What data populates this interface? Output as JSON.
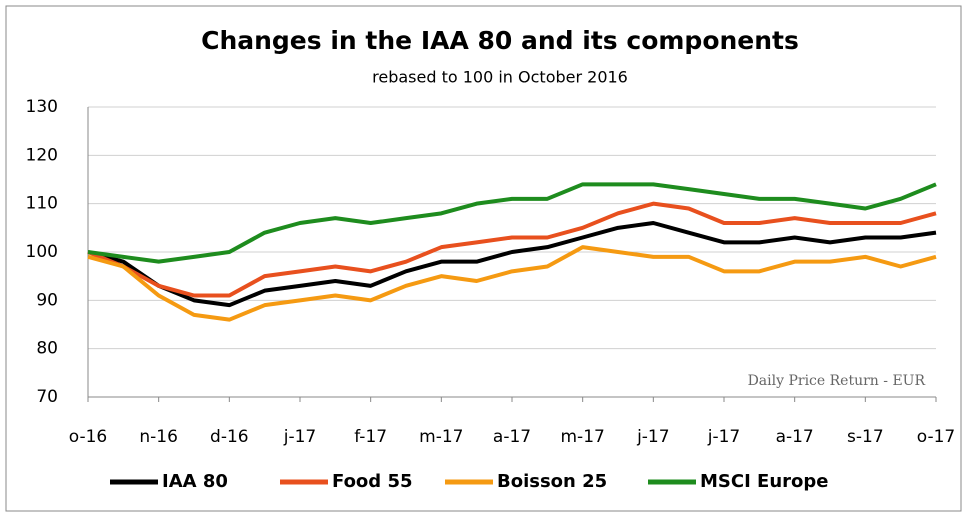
{
  "chart_data": {
    "type": "line",
    "title": "Changes in the IAA 80 and its components",
    "subtitle": "rebased to 100 in October 2016",
    "annotation": "Daily Price Return - EUR",
    "x": [
      0,
      0.5,
      1,
      1.5,
      2,
      2.5,
      3,
      3.5,
      4,
      4.5,
      5,
      5.5,
      6,
      6.5,
      7,
      7.5,
      8,
      8.5,
      9,
      9.5,
      10,
      10.5,
      11,
      11.5,
      12
    ],
    "xlim": [
      0,
      12
    ],
    "xticks": [
      {
        "value": 0,
        "label": "o-16"
      },
      {
        "value": 1,
        "label": "n-16"
      },
      {
        "value": 2,
        "label": "d-16"
      },
      {
        "value": 3,
        "label": "j-17"
      },
      {
        "value": 4,
        "label": "f-17"
      },
      {
        "value": 5,
        "label": "m-17"
      },
      {
        "value": 6,
        "label": "a-17"
      },
      {
        "value": 7,
        "label": "m-17"
      },
      {
        "value": 8,
        "label": "j-17"
      },
      {
        "value": 9,
        "label": "j-17"
      },
      {
        "value": 10,
        "label": "a-17"
      },
      {
        "value": 11,
        "label": "s-17"
      },
      {
        "value": 12,
        "label": "o-17"
      }
    ],
    "ylim": [
      70,
      130
    ],
    "yticks": [
      70,
      80,
      90,
      100,
      110,
      120,
      130
    ],
    "grid": true,
    "legend": "bottom",
    "series": [
      {
        "name": "IAA 80",
        "color": "#000000",
        "values": [
          100,
          98,
          93,
          90,
          89,
          92,
          93,
          94,
          93,
          96,
          98,
          98,
          100,
          101,
          103,
          105,
          106,
          104,
          102,
          102,
          103,
          102,
          103,
          103,
          104
        ]
      },
      {
        "name": "Food 55",
        "color": "#e8501e",
        "values": [
          100,
          97,
          93,
          91,
          91,
          95,
          96,
          97,
          96,
          98,
          101,
          102,
          103,
          103,
          105,
          108,
          110,
          109,
          106,
          106,
          107,
          106,
          106,
          106,
          108
        ]
      },
      {
        "name": "Boisson 25",
        "color": "#f59a12",
        "values": [
          99,
          97,
          91,
          87,
          86,
          89,
          90,
          91,
          90,
          93,
          95,
          94,
          96,
          97,
          101,
          100,
          99,
          99,
          96,
          96,
          98,
          98,
          99,
          97,
          99
        ]
      },
      {
        "name": "MSCI Europe",
        "color": "#1e8c1e",
        "values": [
          100,
          99,
          98,
          99,
          100,
          104,
          106,
          107,
          106,
          107,
          108,
          110,
          111,
          111,
          114,
          114,
          114,
          113,
          112,
          111,
          111,
          110,
          109,
          111,
          114
        ]
      }
    ]
  }
}
